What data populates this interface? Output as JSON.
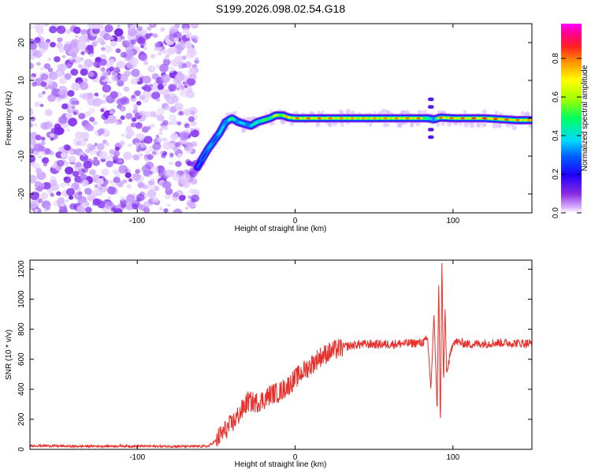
{
  "figure": {
    "title": "S199.2026.098.02.54.G18"
  },
  "chart_data": [
    {
      "type": "heatmap",
      "title": "S199.2026.098.02.54.G18",
      "xlabel": "Height of straight line (km)",
      "ylabel": "Frequency (Hz)",
      "xlim": [
        -168,
        150
      ],
      "ylim": [
        -25,
        25
      ],
      "xticks": [
        -100,
        0,
        100
      ],
      "yticks": [
        -20,
        -10,
        0,
        10,
        20
      ],
      "colorbar": {
        "label": "Normalized spectral amplitude",
        "range": [
          0,
          0.98
        ],
        "ticks": [
          "0.0",
          "0.2",
          "0.4",
          "0.6",
          "0.8"
        ],
        "colors": [
          "#ffffff",
          "#cc99ff",
          "#7b2cff",
          "#2000ff",
          "#0050ff",
          "#00d0ff",
          "#00ff60",
          "#80ff00",
          "#ffff00",
          "#ffa000",
          "#ff3030",
          "#ff00a0",
          "#ff00ff"
        ]
      },
      "noise_region_x": [
        -168,
        -62
      ],
      "ridge": {
        "x": [
          -62,
          -55,
          -48,
          -44,
          -40,
          -36,
          -32,
          -28,
          -24,
          -20,
          -16,
          -12,
          -8,
          -4,
          0,
          20,
          40,
          60,
          80,
          84,
          88,
          92,
          100,
          120,
          140,
          150
        ],
        "y": [
          -13,
          -8,
          -4,
          -1,
          0,
          -1,
          -1.5,
          -2,
          -1,
          -0.5,
          0,
          0.8,
          0.8,
          0.2,
          0,
          0,
          0,
          0,
          0,
          0,
          -0.3,
          0.2,
          0,
          0,
          -0.5,
          -0.5
        ],
        "amplitude": [
          0.3,
          0.35,
          0.4,
          0.45,
          0.5,
          0.45,
          0.4,
          0.45,
          0.5,
          0.55,
          0.6,
          0.7,
          0.75,
          0.8,
          0.85,
          0.85,
          0.8,
          0.82,
          0.85,
          0.5,
          0.4,
          0.85,
          0.85,
          0.9,
          0.85,
          0.8
        ]
      }
    },
    {
      "type": "line",
      "xlabel": "Height of straight line (km)",
      "ylabel": "SNR (10 * v/v)",
      "xlim": [
        -168,
        150
      ],
      "ylim": [
        0,
        1260
      ],
      "xticks": [
        -100,
        0,
        100
      ],
      "yticks": [
        0,
        200,
        400,
        600,
        800,
        1000,
        1200
      ],
      "color": "#e8302c",
      "series": [
        {
          "x": [
            -168,
            -140,
            -110,
            -80,
            -55,
            -50,
            -45,
            -40,
            -35,
            -30,
            -25,
            -20,
            -15,
            -10,
            -5,
            0,
            5,
            10,
            15,
            20,
            25,
            30,
            40,
            60,
            80,
            84,
            86,
            88,
            90,
            91,
            92,
            93,
            94,
            95,
            96,
            100,
            110,
            130,
            150
          ],
          "y": [
            25,
            20,
            22,
            20,
            20,
            60,
            120,
            170,
            240,
            320,
            310,
            330,
            370,
            380,
            420,
            470,
            520,
            560,
            610,
            640,
            660,
            680,
            700,
            700,
            710,
            730,
            400,
            900,
            250,
            1150,
            110,
            1250,
            420,
            950,
            500,
            720,
            700,
            710,
            705
          ]
        }
      ]
    }
  ]
}
